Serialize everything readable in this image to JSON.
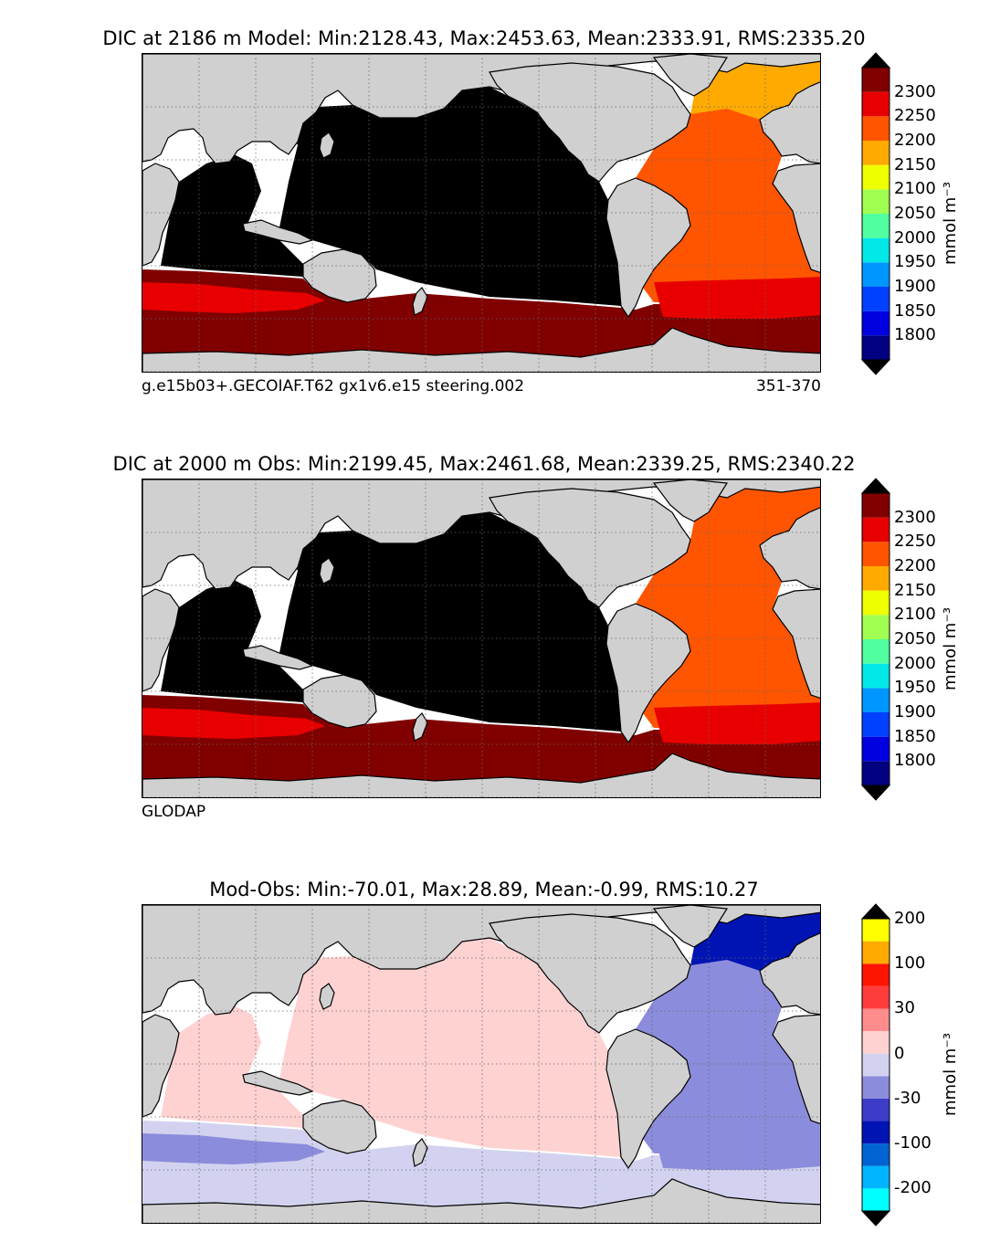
{
  "panels": [
    {
      "title": "DIC at 2186 m Model: Min:2128.43, Max:2453.63, Mean:2333.91, RMS:2335.20",
      "footer_left": "g.e15b03+.GECOIAF.T62 gx1v6.e15 steering.002",
      "footer_right": "351-370",
      "unit": "mmol m⁻³",
      "colorbar": {
        "colors": [
          "#000080",
          "#0000e0",
          "#0040ff",
          "#0096ff",
          "#00e8e8",
          "#50ff9f",
          "#a0ff50",
          "#eeff00",
          "#ffaa00",
          "#ff5500",
          "#e80000",
          "#800000"
        ],
        "ticks": [
          "1800",
          "1850",
          "1900",
          "1950",
          "2000",
          "2050",
          "2100",
          "2150",
          "2200",
          "2250",
          "2300"
        ],
        "extend_low": "#000000",
        "extend_high": "#000000"
      },
      "ocean": {
        "pacific": "#000000",
        "atlantic": "#ff5500",
        "north_atlantic": "#ffaa00",
        "southern": "#800000",
        "south_band": "#e80000"
      }
    },
    {
      "title": "DIC at 2000 m Obs: Min:2199.45, Max:2461.68, Mean:2339.25, RMS:2340.22",
      "footer_left": "GLODAP",
      "footer_right": "",
      "unit": "mmol m⁻³",
      "colorbar": {
        "colors": [
          "#000080",
          "#0000e0",
          "#0040ff",
          "#0096ff",
          "#00e8e8",
          "#50ff9f",
          "#a0ff50",
          "#eeff00",
          "#ffaa00",
          "#ff5500",
          "#e80000",
          "#800000"
        ],
        "ticks": [
          "1800",
          "1850",
          "1900",
          "1950",
          "2000",
          "2050",
          "2100",
          "2150",
          "2200",
          "2250",
          "2300"
        ],
        "extend_low": "#000000",
        "extend_high": "#000000"
      },
      "ocean": {
        "pacific": "#000000",
        "atlantic": "#ff5500",
        "north_atlantic": "#ff5500",
        "southern": "#800000",
        "south_band": "#e80000"
      }
    },
    {
      "title": "Mod-Obs: Min:-70.01, Max:28.89, Mean:-0.99, RMS:10.27",
      "footer_left": "",
      "footer_right": "",
      "unit": "mmol m⁻³",
      "colorbar": {
        "colors": [
          "#00ffff",
          "#00b4ff",
          "#0064d2",
          "#0014b4",
          "#3c3cc8",
          "#8c8cdc",
          "#d2d2f0",
          "#ffd2d2",
          "#ff8c8c",
          "#ff3c3c",
          "#ff1400",
          "#ffaa00",
          "#ffff00"
        ],
        "ticks": [
          "-200",
          "-100",
          "-30",
          "0",
          "30",
          "100",
          "200"
        ],
        "extend_low": "#000000",
        "extend_high": "#000000"
      },
      "ocean": {
        "pacific": "#ffd2d2",
        "atlantic": "#8c8cdc",
        "north_atlantic": "#0014b4",
        "southern": "#d2d2f0",
        "south_band": "#8c8cdc"
      }
    }
  ]
}
